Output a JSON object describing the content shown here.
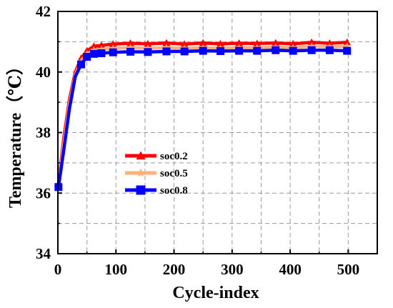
{
  "chart_data": {
    "type": "line",
    "xlabel": "Cycle-index",
    "ylabel": "Temperature（℃）",
    "xlim": [
      0,
      550
    ],
    "ylim": [
      34,
      42
    ],
    "xticks": [
      "0",
      "100",
      "200",
      "300",
      "400",
      "500"
    ],
    "yticks": [
      "34",
      "36",
      "38",
      "40",
      "42"
    ],
    "grid": true,
    "legend_position": "center-left",
    "series": [
      {
        "name": "soc0.2",
        "color": "#ff0000",
        "marker": "triangle",
        "x": [
          1,
          10,
          20,
          30,
          40,
          50,
          62,
          75,
          95,
          125,
          155,
          187,
          218,
          250,
          280,
          312,
          343,
          375,
          405,
          437,
          468,
          498
        ],
        "y": [
          36.3,
          37.8,
          39.1,
          40.0,
          40.45,
          40.7,
          40.85,
          40.88,
          40.92,
          40.95,
          40.93,
          40.96,
          40.92,
          40.96,
          40.93,
          40.95,
          40.94,
          40.96,
          40.93,
          40.98,
          40.95,
          40.98
        ]
      },
      {
        "name": "soc0.5",
        "color": "#ffb07a",
        "marker": "star",
        "x": [
          1,
          10,
          20,
          30,
          40,
          50,
          62,
          75,
          95,
          125,
          155,
          187,
          218,
          250,
          280,
          312,
          343,
          375,
          405,
          437,
          468,
          498
        ],
        "y": [
          36.25,
          37.6,
          38.95,
          39.9,
          40.35,
          40.6,
          40.72,
          40.75,
          40.78,
          40.8,
          40.78,
          40.8,
          40.78,
          40.8,
          40.78,
          40.8,
          40.8,
          40.82,
          40.8,
          40.85,
          40.83,
          40.85
        ]
      },
      {
        "name": "soc0.8",
        "color": "#0000ff",
        "marker": "square",
        "x": [
          1,
          10,
          20,
          30,
          40,
          50,
          62,
          75,
          95,
          125,
          155,
          187,
          218,
          250,
          280,
          312,
          343,
          375,
          405,
          437,
          468,
          498
        ],
        "y": [
          36.2,
          37.4,
          38.8,
          39.85,
          40.25,
          40.5,
          40.6,
          40.62,
          40.65,
          40.67,
          40.66,
          40.68,
          40.68,
          40.7,
          40.69,
          40.7,
          40.7,
          40.72,
          40.7,
          40.72,
          40.72,
          40.7
        ]
      }
    ]
  }
}
